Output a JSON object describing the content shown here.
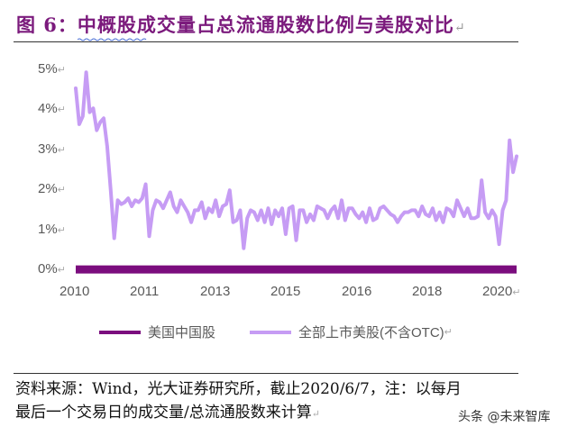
{
  "header": {
    "title": "图 6：中概股成交量占总流通股数比例与美股对比"
  },
  "chart_data": {
    "type": "line",
    "title": "中概股成交量占总流通股数比例与美股对比",
    "xlabel": "",
    "ylabel": "",
    "ylim": [
      0,
      5
    ],
    "yticks": [
      "0%",
      "1%",
      "2%",
      "3%",
      "4%",
      "5%"
    ],
    "xticks": [
      "2010",
      "2011",
      "2013",
      "2015",
      "2016",
      "2018",
      "2020"
    ],
    "grid": false,
    "legend_position": "bottom",
    "series": [
      {
        "name": "美国中国股",
        "color": "#7b0d7e",
        "values": [
          0.02,
          0.02,
          0.02,
          0.02,
          0.02,
          0.02,
          0.02,
          0.02,
          0.02,
          0.02,
          0.02,
          0.02,
          0.02,
          0.02,
          0.02,
          0.02,
          0.02,
          0.02,
          0.02,
          0.02,
          0.02,
          0.02,
          0.02,
          0.02,
          0.02,
          0.02,
          0.02,
          0.02,
          0.02,
          0.02,
          0.02,
          0.02,
          0.02,
          0.02,
          0.02,
          0.02,
          0.02,
          0.02,
          0.02,
          0.02,
          0.02,
          0.02,
          0.02,
          0.02,
          0.02,
          0.02,
          0.02,
          0.02,
          0.02,
          0.02,
          0.02,
          0.02,
          0.02,
          0.02,
          0.02,
          0.02,
          0.02,
          0.02,
          0.02,
          0.02,
          0.02,
          0.02,
          0.02,
          0.02,
          0.02,
          0.02,
          0.02,
          0.02,
          0.02,
          0.02,
          0.02,
          0.02,
          0.02,
          0.02,
          0.02,
          0.02,
          0.02,
          0.02,
          0.02,
          0.02,
          0.02,
          0.02,
          0.02,
          0.02,
          0.02,
          0.02,
          0.02,
          0.02,
          0.02,
          0.02,
          0.02,
          0.02,
          0.02,
          0.02,
          0.02,
          0.02,
          0.02,
          0.02,
          0.02,
          0.02,
          0.02,
          0.02,
          0.02,
          0.02,
          0.02,
          0.02,
          0.02,
          0.02,
          0.02,
          0.02,
          0.02,
          0.02,
          0.02,
          0.02,
          0.02,
          0.02,
          0.02,
          0.02,
          0.02,
          0.02,
          0.02,
          0.02,
          0.02,
          0.02,
          0.02,
          0.02
        ]
      },
      {
        "name": "全部上市美股(不含OTC)",
        "color": "#c69cf4",
        "values": [
          4.55,
          3.65,
          3.85,
          4.95,
          3.95,
          4.05,
          3.5,
          3.7,
          3.8,
          3.1,
          2.0,
          0.8,
          1.75,
          1.65,
          1.7,
          1.8,
          1.6,
          1.75,
          1.7,
          1.8,
          2.15,
          0.85,
          1.5,
          1.75,
          1.7,
          1.55,
          1.75,
          1.95,
          1.6,
          1.45,
          1.75,
          1.6,
          1.45,
          1.2,
          1.5,
          1.5,
          1.7,
          1.3,
          1.55,
          1.45,
          1.75,
          1.35,
          1.6,
          1.65,
          2.0,
          1.2,
          1.25,
          1.5,
          0.55,
          1.3,
          1.5,
          1.45,
          1.25,
          1.5,
          1.2,
          1.55,
          1.15,
          1.5,
          1.35,
          1.55,
          0.9,
          1.55,
          1.6,
          0.75,
          1.5,
          1.5,
          1.2,
          1.4,
          1.25,
          1.6,
          1.55,
          1.5,
          1.3,
          1.5,
          1.6,
          1.3,
          1.75,
          1.25,
          1.55,
          1.55,
          1.4,
          1.3,
          1.45,
          1.2,
          1.55,
          1.25,
          1.3,
          1.55,
          1.6,
          1.5,
          1.4,
          1.35,
          1.2,
          1.35,
          1.45,
          1.45,
          1.5,
          1.5,
          1.35,
          1.6,
          1.4,
          1.35,
          1.55,
          1.25,
          1.45,
          1.2,
          1.55,
          1.5,
          1.35,
          1.75,
          1.55,
          1.35,
          1.55,
          1.3,
          1.3,
          1.35,
          2.25,
          1.45,
          1.3,
          1.5,
          1.35,
          0.65,
          1.5,
          1.75,
          3.25,
          2.45,
          2.85
        ]
      }
    ]
  },
  "legend": {
    "items": [
      {
        "label": "美国中国股",
        "color": "#7b0d7e"
      },
      {
        "label": "全部上市美股(不含OTC)",
        "color": "#c69cf4"
      }
    ]
  },
  "footer": {
    "source_line1": "资料来源：Wind，光大证券研究所，截止2020/6/7，注：以每月",
    "source_line2": "最后一个交易日的成交量/总流通股数来计算",
    "watermark": "头条 @未来智库"
  }
}
